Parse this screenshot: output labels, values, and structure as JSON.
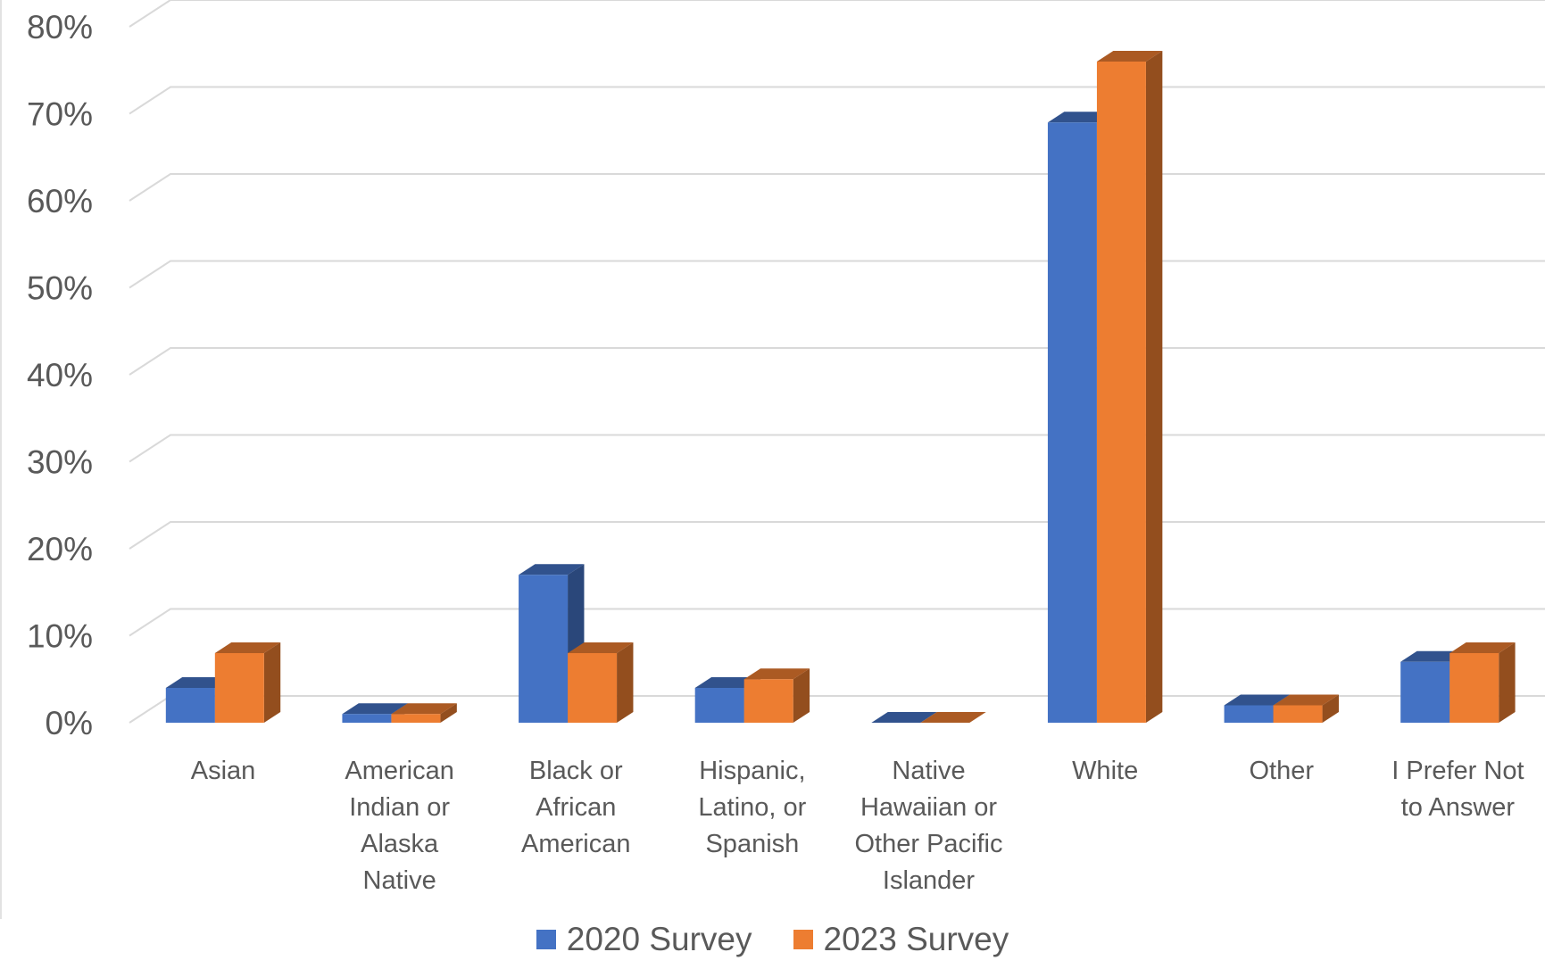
{
  "chart_data": {
    "type": "bar",
    "subtype": "3d-clustered-column",
    "title": "",
    "xlabel": "",
    "ylabel": "",
    "ylim": [
      0,
      80
    ],
    "y_ticks": [
      "0%",
      "10%",
      "20%",
      "30%",
      "40%",
      "50%",
      "60%",
      "70%",
      "80%"
    ],
    "grid": true,
    "legend_position": "bottom",
    "categories": [
      "Asian",
      "American Indian or Alaska Native",
      "Black or African American",
      "Hispanic, Latino, or Spanish",
      "Native Hawaiian or Other Pacific Islander",
      "White",
      "Other",
      "I Prefer Not to Answer"
    ],
    "category_lines": [
      [
        "Asian"
      ],
      [
        "American",
        "Indian or",
        "Alaska",
        "Native"
      ],
      [
        "Black or",
        "African",
        "American"
      ],
      [
        "Hispanic,",
        "Latino, or",
        "Spanish"
      ],
      [
        "Native",
        "Hawaiian or",
        "Other Pacific",
        "Islander"
      ],
      [
        "White"
      ],
      [
        "Other"
      ],
      [
        "I Prefer Not",
        "to Answer"
      ]
    ],
    "series": [
      {
        "name": "2020 Survey",
        "color": "#4472C4",
        "values": [
          4,
          1,
          17,
          4,
          0,
          69,
          2,
          7
        ]
      },
      {
        "name": "2023 Survey",
        "color": "#ED7D31",
        "values": [
          8,
          1,
          8,
          5,
          0,
          76,
          2,
          8
        ]
      }
    ]
  }
}
